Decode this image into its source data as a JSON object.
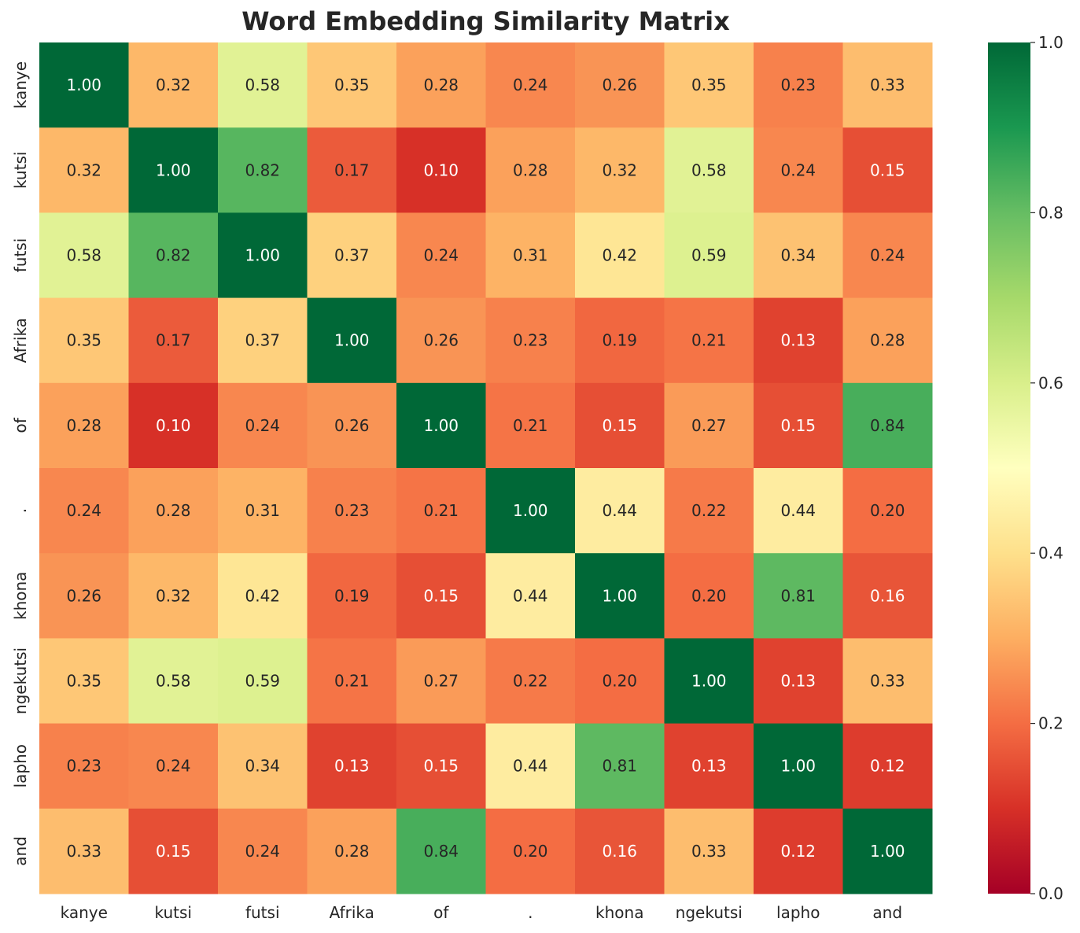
{
  "chart_data": {
    "type": "heatmap",
    "title": "Word Embedding Similarity Matrix",
    "row_labels": [
      "kanye",
      "kutsi",
      "futsi",
      "Afrika",
      "of",
      ".",
      "khona",
      "ngekutsi",
      "lapho",
      "and"
    ],
    "col_labels": [
      "kanye",
      "kutsi",
      "futsi",
      "Afrika",
      "of",
      ".",
      "khona",
      "ngekutsi",
      "lapho",
      "and"
    ],
    "values": [
      [
        1.0,
        0.32,
        0.58,
        0.35,
        0.28,
        0.24,
        0.26,
        0.35,
        0.23,
        0.33
      ],
      [
        0.32,
        1.0,
        0.82,
        0.17,
        0.1,
        0.28,
        0.32,
        0.58,
        0.24,
        0.15
      ],
      [
        0.58,
        0.82,
        1.0,
        0.37,
        0.24,
        0.31,
        0.42,
        0.59,
        0.34,
        0.24
      ],
      [
        0.35,
        0.17,
        0.37,
        1.0,
        0.26,
        0.23,
        0.19,
        0.21,
        0.13,
        0.28
      ],
      [
        0.28,
        0.1,
        0.24,
        0.26,
        1.0,
        0.21,
        0.15,
        0.27,
        0.15,
        0.84
      ],
      [
        0.24,
        0.28,
        0.31,
        0.23,
        0.21,
        1.0,
        0.44,
        0.22,
        0.44,
        0.2
      ],
      [
        0.26,
        0.32,
        0.42,
        0.19,
        0.15,
        0.44,
        1.0,
        0.2,
        0.81,
        0.16
      ],
      [
        0.35,
        0.58,
        0.59,
        0.21,
        0.27,
        0.22,
        0.2,
        1.0,
        0.13,
        0.33
      ],
      [
        0.23,
        0.24,
        0.34,
        0.13,
        0.15,
        0.44,
        0.81,
        0.13,
        1.0,
        0.12
      ],
      [
        0.33,
        0.15,
        0.24,
        0.28,
        0.84,
        0.2,
        0.16,
        0.33,
        0.12,
        1.0
      ]
    ],
    "value_format": "0.00",
    "colorscale": "RdYlGn",
    "color_range": [
      0.0,
      1.0
    ],
    "colorbar_ticks": [
      "0.0",
      "0.2",
      "0.4",
      "0.6",
      "0.8",
      "1.0"
    ],
    "grid": false
  }
}
